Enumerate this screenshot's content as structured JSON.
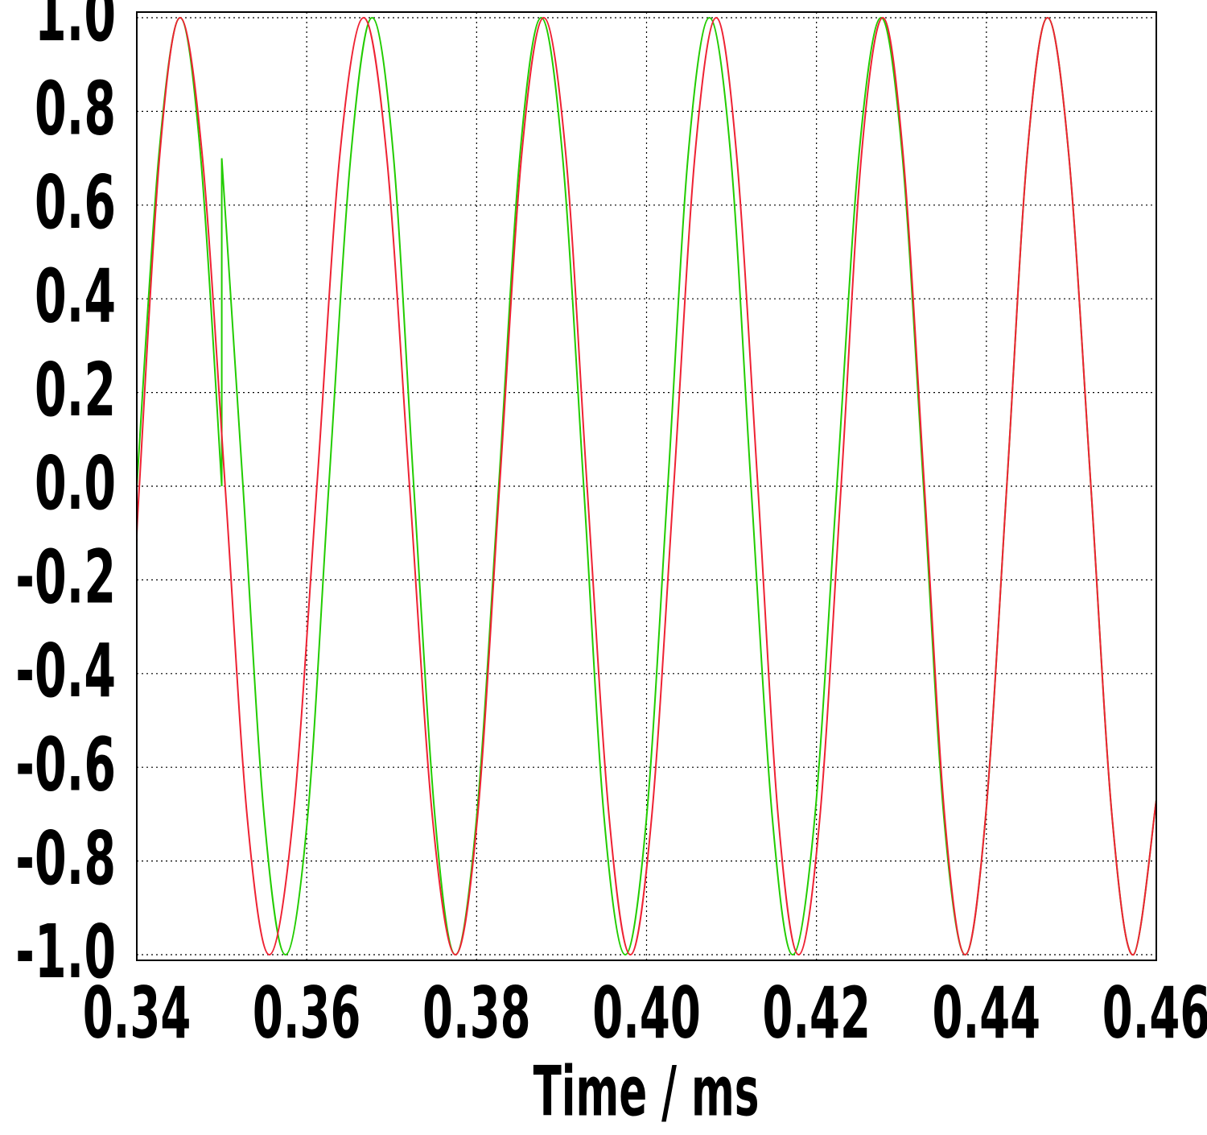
{
  "chart_data": {
    "type": "line",
    "xlabel": "Time / ms",
    "xlim": [
      0.34,
      0.46
    ],
    "ylim": [
      -1.012,
      1.012
    ],
    "xticks": [
      0.34,
      0.36,
      0.38,
      {
        "value": 0.4,
        "label": "0.40"
      },
      0.42,
      0.44,
      0.46
    ],
    "yticks": [
      {
        "value": -1,
        "label": "-1.0"
      },
      -0.8,
      -0.6,
      -0.4,
      -0.2,
      {
        "value": 0,
        "label": "0.0"
      },
      0.2,
      0.4,
      0.6,
      0.8,
      {
        "value": 1,
        "label": "1.0"
      }
    ],
    "grid": true,
    "series": [
      {
        "color": "#22cc00",
        "x": [
          0.34,
          0.3426,
          0.3451,
          0.3475,
          0.35,
          0.35,
          0.3525,
          0.355,
          0.3575,
          0.3601,
          0.3626,
          0.3652,
          0.3677,
          0.3702,
          0.3726,
          0.3751,
          0.3775,
          0.38,
          0.3826,
          0.3851,
          0.3876,
          0.3901,
          0.3926,
          0.395,
          0.3975,
          0.4,
          0.4025,
          0.4049,
          0.4074,
          0.4099,
          0.4123,
          0.4148,
          0.4172,
          0.4198,
          0.4224,
          0.425,
          0.4276,
          0.4301,
          0.4326,
          0.435,
          0.4375,
          0.4399,
          0.4424,
          0.4448,
          0.4472,
          0.4497,
          0.4523,
          0.4548,
          0.4573,
          0.46
        ],
        "values": [
          0,
          0.707,
          1,
          0.707,
          0,
          0.7,
          0,
          -0.707,
          -1,
          -0.707,
          0,
          0.707,
          1,
          0.707,
          0,
          -0.707,
          -1,
          -0.707,
          0,
          0.707,
          1,
          0.707,
          0,
          -0.707,
          -1,
          -0.707,
          0,
          0.707,
          1,
          0.707,
          0,
          -0.707,
          -1,
          -0.707,
          0,
          0.707,
          1,
          0.707,
          0,
          -0.707,
          -1,
          -0.707,
          0,
          0.707,
          1,
          0.707,
          0,
          -0.707,
          -1,
          -0.67
        ]
      },
      {
        "color": "#ee2233",
        "x": [
          0.34,
          0.3403,
          0.3427,
          0.3451,
          0.3477,
          0.3504,
          0.353,
          0.3556,
          0.3584,
          0.3612,
          0.3639,
          0.3667,
          0.3694,
          0.3721,
          0.3748,
          0.3775,
          0.3801,
          0.3827,
          0.3853,
          0.3879,
          0.3905,
          0.393,
          0.3956,
          0.3981,
          0.4006,
          0.4032,
          0.4057,
          0.4082,
          0.4106,
          0.4131,
          0.4155,
          0.4179,
          0.4204,
          0.4229,
          0.4253,
          0.4278,
          0.4302,
          0.4327,
          0.4351,
          0.4375,
          0.4399,
          0.4424,
          0.4448,
          0.4472,
          0.4497,
          0.4523,
          0.4548,
          0.4573,
          0.46
        ],
        "values": [
          -0.12,
          0,
          0.707,
          1,
          0.707,
          0,
          -0.707,
          -1,
          -0.707,
          0,
          0.707,
          1,
          0.707,
          0,
          -0.707,
          -1,
          -0.707,
          0,
          0.707,
          1,
          0.707,
          0,
          -0.707,
          -1,
          -0.707,
          0,
          0.707,
          1,
          0.707,
          0,
          -0.707,
          -1,
          -0.707,
          0,
          0.707,
          1,
          0.707,
          0,
          -0.707,
          -1,
          -0.707,
          0,
          0.707,
          1,
          0.707,
          0,
          -0.707,
          -1,
          -0.67
        ]
      }
    ]
  }
}
